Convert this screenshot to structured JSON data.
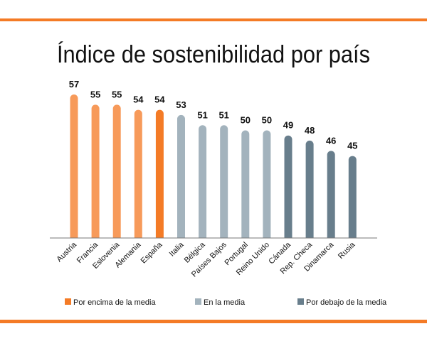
{
  "chart_data": {
    "type": "bar",
    "title": "Índice de sostenibilidad por país",
    "categories": [
      "Austria",
      "Francia",
      "Eslovenia",
      "Alemania",
      "España",
      "Italia",
      "Bélgica",
      "Países Bajos",
      "Portugal",
      "Reino Unido",
      "Cánada",
      "Rep. Checa",
      "Dinamarca",
      "Rusia"
    ],
    "values": [
      57,
      55,
      55,
      54,
      54,
      53,
      51,
      51,
      50,
      50,
      49,
      48,
      46,
      45
    ],
    "groups": [
      "above",
      "above",
      "above",
      "above",
      "above-highlight",
      "mean",
      "mean",
      "mean",
      "mean",
      "mean",
      "below",
      "below",
      "below",
      "below"
    ],
    "ylim": [
      29,
      57
    ],
    "grid": false,
    "legend_placement": "bottom",
    "legend": [
      {
        "key": "above",
        "label": "Por encima de la media",
        "color": "#F47B26"
      },
      {
        "key": "mean",
        "label": "En la media",
        "color": "#A3B3BD"
      },
      {
        "key": "below",
        "label": "Por debajo de la media",
        "color": "#687E8C"
      }
    ],
    "colors": {
      "above": "#F79A5A",
      "above-highlight": "#F47B26",
      "mean": "#A3B3BD",
      "below": "#687E8C",
      "frame": "#F47B26"
    }
  }
}
